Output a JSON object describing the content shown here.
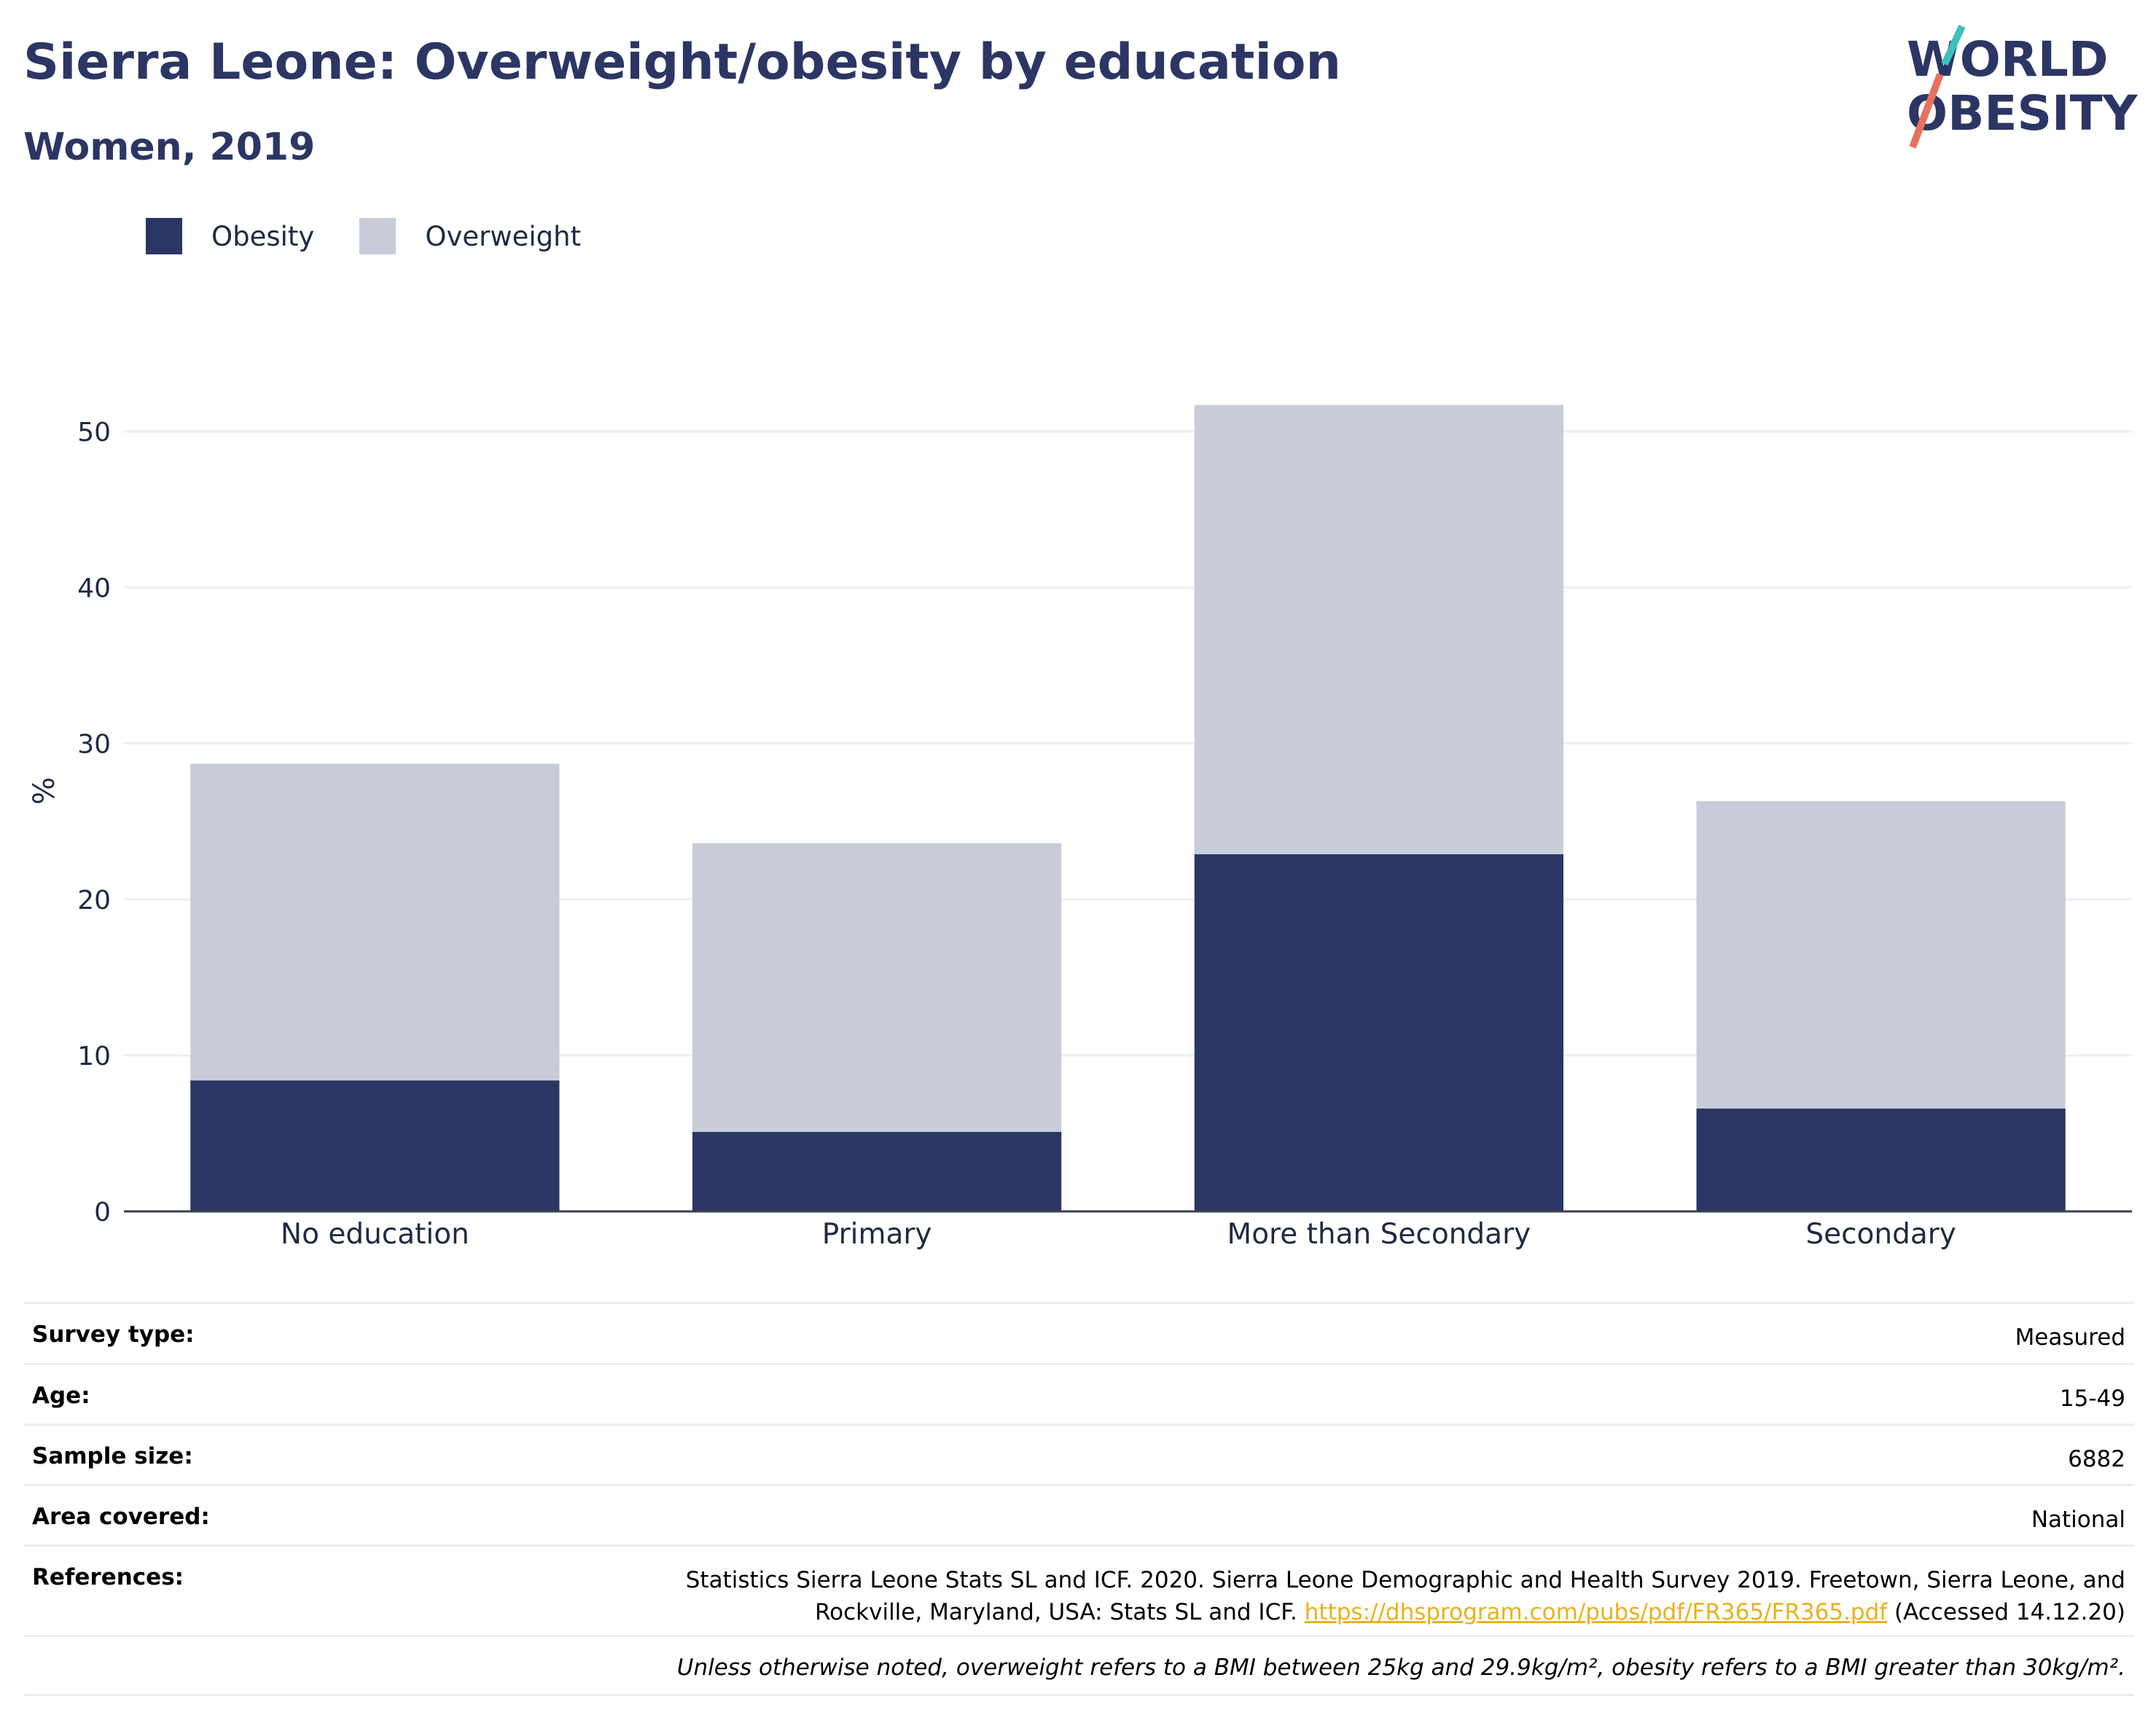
{
  "header": {
    "title": "Sierra Leone: Overweight/obesity by education",
    "subtitle": "Women, 2019"
  },
  "logo": {
    "line1": "WORLD",
    "line2": "OBESITY"
  },
  "colors": {
    "obesity": "#2b3664",
    "overweight": "#c9ccd8",
    "link": "#e8b21c",
    "logo_teal": "#3fbfb9",
    "logo_coral": "#e8715e"
  },
  "chart_data": {
    "type": "bar",
    "stacked": true,
    "categories": [
      "No education",
      "Primary",
      "More than Secondary",
      "Secondary"
    ],
    "series": [
      {
        "name": "Obesity",
        "values": [
          8.4,
          5.1,
          22.9,
          6.6
        ]
      },
      {
        "name": "Overweight",
        "values": [
          20.3,
          18.5,
          28.8,
          19.7
        ]
      }
    ],
    "ylabel": "%",
    "ylim": [
      0,
      55
    ],
    "yticks": [
      0,
      10,
      20,
      30,
      40,
      50
    ],
    "grid": true,
    "legend": "top-left"
  },
  "info": {
    "rows": [
      {
        "label": "Survey type:",
        "value": "Measured"
      },
      {
        "label": "Age:",
        "value": "15-49"
      },
      {
        "label": "Sample size:",
        "value": "6882"
      },
      {
        "label": "Area covered:",
        "value": "National"
      }
    ],
    "references": {
      "label": "References:",
      "line1": "Statistics Sierra Leone Stats SL and ICF. 2020. Sierra Leone Demographic and Health Survey 2019. Freetown, Sierra Leone, and",
      "line2_prefix": "Rockville, Maryland, USA: Stats SL and ICF.",
      "link": "https://dhsprogram.com/pubs/pdf/FR365/FR365.pdf",
      "suffix": "(Accessed 14.12.20)"
    },
    "note": "Unless otherwise noted, overweight refers to a BMI between 25kg and 29.9kg/m², obesity refers to a BMI greater than 30kg/m²."
  }
}
